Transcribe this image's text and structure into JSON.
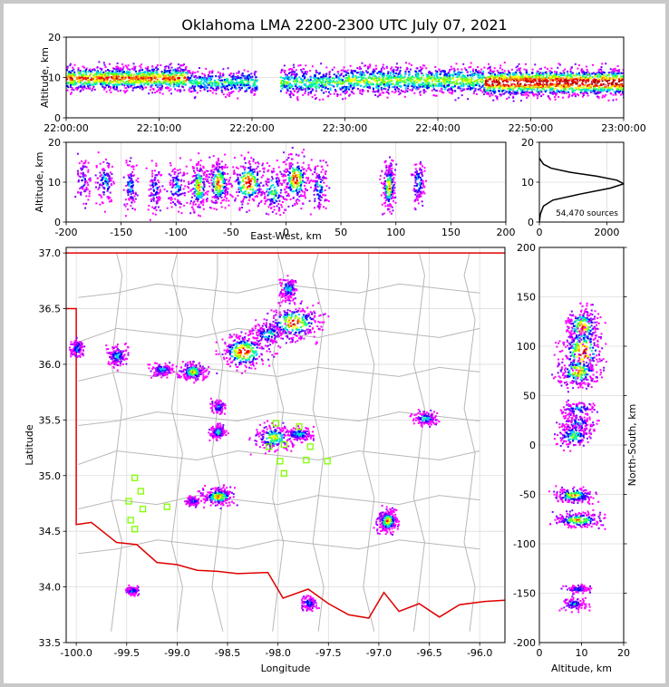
{
  "chart_data": [
    {
      "id": "time_altitude",
      "type": "heatmap",
      "title": "Oklahoma LMA 2200-2300 UTC July 07, 2021",
      "ylabel": "Altitude, km",
      "xlabel": "",
      "xlim": [
        "22:00:00",
        "23:00:00"
      ],
      "ylim": [
        0,
        20
      ],
      "xticks": [
        "22:00:00",
        "22:10:00",
        "22:20:00",
        "22:30:00",
        "22:40:00",
        "22:50:00",
        "23:00:00"
      ],
      "yticks": [
        "0",
        "10",
        "20"
      ],
      "grid": true,
      "source_clusters": [
        {
          "t0": "22:00:00",
          "t1": "22:13:00",
          "alt_center": 10,
          "alt_spread": 3,
          "intensity": 0.8
        },
        {
          "t0": "22:13:00",
          "t1": "22:20:30",
          "alt_center": 9,
          "alt_spread": 3,
          "intensity": 0.4
        },
        {
          "t0": "22:23:00",
          "t1": "22:30:00",
          "alt_center": 9,
          "alt_spread": 3.5,
          "intensity": 0.45
        },
        {
          "t0": "22:30:00",
          "t1": "22:45:00",
          "alt_center": 9.5,
          "alt_spread": 3.5,
          "intensity": 0.55
        },
        {
          "t0": "22:45:00",
          "t1": "23:00:00",
          "alt_center": 9,
          "alt_spread": 3.5,
          "intensity": 1.0
        }
      ]
    },
    {
      "id": "eastwest_altitude",
      "type": "heatmap",
      "xlabel": "East-West, km",
      "ylabel": "Altitude, km",
      "xlim": [
        -200,
        200
      ],
      "ylim": [
        0,
        20
      ],
      "xticks": [
        "-200",
        "-150",
        "-100",
        "-50",
        "0",
        "50",
        "100",
        "150",
        "200"
      ],
      "yticks": [
        "0",
        "10",
        "20"
      ],
      "grid": true,
      "source_clusters": [
        {
          "x": -185,
          "w": 6,
          "alt": 11,
          "intensity": 0.2
        },
        {
          "x": -165,
          "w": 8,
          "alt": 10,
          "intensity": 0.35
        },
        {
          "x": -142,
          "w": 6,
          "alt": 9,
          "intensity": 0.3
        },
        {
          "x": -120,
          "w": 6,
          "alt": 8,
          "intensity": 0.3
        },
        {
          "x": -100,
          "w": 8,
          "alt": 9,
          "intensity": 0.35
        },
        {
          "x": -80,
          "w": 8,
          "alt": 9,
          "intensity": 0.8
        },
        {
          "x": -62,
          "w": 10,
          "alt": 10,
          "intensity": 0.9
        },
        {
          "x": -35,
          "w": 16,
          "alt": 10,
          "intensity": 1.0
        },
        {
          "x": -12,
          "w": 12,
          "alt": 8,
          "intensity": 0.5
        },
        {
          "x": 8,
          "w": 12,
          "alt": 11,
          "intensity": 1.0
        },
        {
          "x": 30,
          "w": 8,
          "alt": 9,
          "intensity": 0.35
        },
        {
          "x": 93,
          "w": 6,
          "alt": 9,
          "intensity": 0.85
        },
        {
          "x": 120,
          "w": 6,
          "alt": 10,
          "intensity": 0.35
        }
      ]
    },
    {
      "id": "altitude_histogram",
      "type": "line",
      "xlim": [
        0,
        2500
      ],
      "ylim": [
        0,
        20
      ],
      "xticks": [
        "0",
        "2000"
      ],
      "yticks": [
        "0",
        "10",
        "20"
      ],
      "annotation": "54,470 sources",
      "grid": true,
      "series": [
        {
          "x": [
            0,
            30,
            120,
            400,
            1200,
            2100,
            2500,
            2300,
            1700,
            900,
            350,
            120,
            40,
            0
          ],
          "y": [
            0,
            2,
            4,
            5.5,
            7,
            8.5,
            9.6,
            10.5,
            11.5,
            12.5,
            13.5,
            14.5,
            15.5,
            16
          ]
        }
      ]
    },
    {
      "id": "plan_view",
      "type": "heatmap",
      "xlabel": "Longitude",
      "ylabel": "Latitude",
      "xlim": [
        -100.1,
        -95.75
      ],
      "ylim": [
        33.5,
        37.05
      ],
      "xticks": [
        "-100.0",
        "-99.5",
        "-99.0",
        "-98.5",
        "-98.0",
        "-97.5",
        "-97.0",
        "-96.5",
        "-96.0"
      ],
      "yticks": [
        "33.5",
        "34.0",
        "34.5",
        "35.0",
        "35.5",
        "36.0",
        "36.5",
        "37.0"
      ],
      "grid": true,
      "source_clusters": [
        {
          "lon": -98.35,
          "lat": 36.12,
          "rx": 0.12,
          "ry": 0.08,
          "intensity": 1.0
        },
        {
          "lon": -97.85,
          "lat": 36.38,
          "rx": 0.14,
          "ry": 0.08,
          "intensity": 0.95
        },
        {
          "lon": -98.1,
          "lat": 36.28,
          "rx": 0.08,
          "ry": 0.05,
          "intensity": 0.45
        },
        {
          "lon": -97.9,
          "lat": 36.68,
          "rx": 0.04,
          "ry": 0.05,
          "intensity": 0.4
        },
        {
          "lon": -98.85,
          "lat": 35.94,
          "rx": 0.06,
          "ry": 0.04,
          "intensity": 0.75
        },
        {
          "lon": -99.6,
          "lat": 36.08,
          "rx": 0.05,
          "ry": 0.05,
          "intensity": 0.4
        },
        {
          "lon": -100.0,
          "lat": 36.15,
          "rx": 0.03,
          "ry": 0.04,
          "intensity": 0.35
        },
        {
          "lon": -99.15,
          "lat": 35.96,
          "rx": 0.06,
          "ry": 0.03,
          "intensity": 0.35
        },
        {
          "lon": -98.05,
          "lat": 35.35,
          "rx": 0.1,
          "ry": 0.06,
          "intensity": 0.65
        },
        {
          "lon": -97.8,
          "lat": 35.38,
          "rx": 0.07,
          "ry": 0.03,
          "intensity": 0.4
        },
        {
          "lon": -98.6,
          "lat": 35.4,
          "rx": 0.04,
          "ry": 0.03,
          "intensity": 0.5
        },
        {
          "lon": -98.6,
          "lat": 35.62,
          "rx": 0.03,
          "ry": 0.03,
          "intensity": 0.3
        },
        {
          "lon": -98.6,
          "lat": 34.82,
          "rx": 0.08,
          "ry": 0.04,
          "intensity": 0.8
        },
        {
          "lon": -98.85,
          "lat": 34.78,
          "rx": 0.03,
          "ry": 0.02,
          "intensity": 0.3
        },
        {
          "lon": -96.92,
          "lat": 34.6,
          "rx": 0.05,
          "ry": 0.05,
          "intensity": 0.85
        },
        {
          "lon": -96.55,
          "lat": 35.52,
          "rx": 0.06,
          "ry": 0.03,
          "intensity": 0.4
        },
        {
          "lon": -99.45,
          "lat": 33.97,
          "rx": 0.03,
          "ry": 0.02,
          "intensity": 0.3
        },
        {
          "lon": -97.7,
          "lat": 33.86,
          "rx": 0.04,
          "ry": 0.03,
          "intensity": 0.3
        }
      ],
      "stations": [
        {
          "lon": -99.42,
          "lat": 34.98
        },
        {
          "lon": -99.36,
          "lat": 34.86
        },
        {
          "lon": -99.48,
          "lat": 34.77
        },
        {
          "lon": -99.34,
          "lat": 34.7
        },
        {
          "lon": -99.1,
          "lat": 34.72
        },
        {
          "lon": -99.46,
          "lat": 34.6
        },
        {
          "lon": -99.42,
          "lat": 34.52
        },
        {
          "lon": -98.02,
          "lat": 35.47
        },
        {
          "lon": -97.79,
          "lat": 35.44
        },
        {
          "lon": -98.09,
          "lat": 35.26
        },
        {
          "lon": -97.94,
          "lat": 35.28
        },
        {
          "lon": -97.68,
          "lat": 35.26
        },
        {
          "lon": -97.72,
          "lat": 35.14
        },
        {
          "lon": -97.51,
          "lat": 35.13
        },
        {
          "lon": -97.98,
          "lat": 35.13
        },
        {
          "lon": -97.94,
          "lat": 35.02
        }
      ],
      "colors": {
        "state_border": "#e00000",
        "county_lines": "#b8b8b8",
        "stations": "#80ff00"
      }
    },
    {
      "id": "altitude_northsouth",
      "type": "heatmap",
      "xlabel": "Altitude, km",
      "ylabel": "North-South, km",
      "xlim": [
        0,
        20
      ],
      "ylim": [
        -200,
        200
      ],
      "xticks": [
        "0",
        "10",
        "20"
      ],
      "yticks": [
        "-200",
        "-150",
        "-100",
        "-50",
        "0",
        "50",
        "100",
        "150",
        "200"
      ],
      "grid": true,
      "source_clusters": [
        {
          "alt": 10,
          "w": 4,
          "y": 120,
          "h": 10,
          "intensity": 0.9
        },
        {
          "alt": 10,
          "w": 5,
          "y": 95,
          "h": 14,
          "intensity": 1.0
        },
        {
          "alt": 9,
          "w": 5,
          "y": 75,
          "h": 8,
          "intensity": 0.8
        },
        {
          "alt": 9,
          "w": 4,
          "y": 37,
          "h": 4,
          "intensity": 0.3
        },
        {
          "alt": 9,
          "w": 4,
          "y": 22,
          "h": 5,
          "intensity": 0.4
        },
        {
          "alt": 8,
          "w": 4,
          "y": 10,
          "h": 6,
          "intensity": 0.55
        },
        {
          "alt": 8,
          "w": 5,
          "y": -50,
          "h": 4,
          "intensity": 0.75
        },
        {
          "alt": 9,
          "w": 6,
          "y": -75,
          "h": 4,
          "intensity": 0.8
        },
        {
          "alt": 9,
          "w": 3,
          "y": -145,
          "h": 2,
          "intensity": 0.3
        },
        {
          "alt": 8,
          "w": 3,
          "y": -160,
          "h": 3,
          "intensity": 0.35
        }
      ]
    }
  ]
}
